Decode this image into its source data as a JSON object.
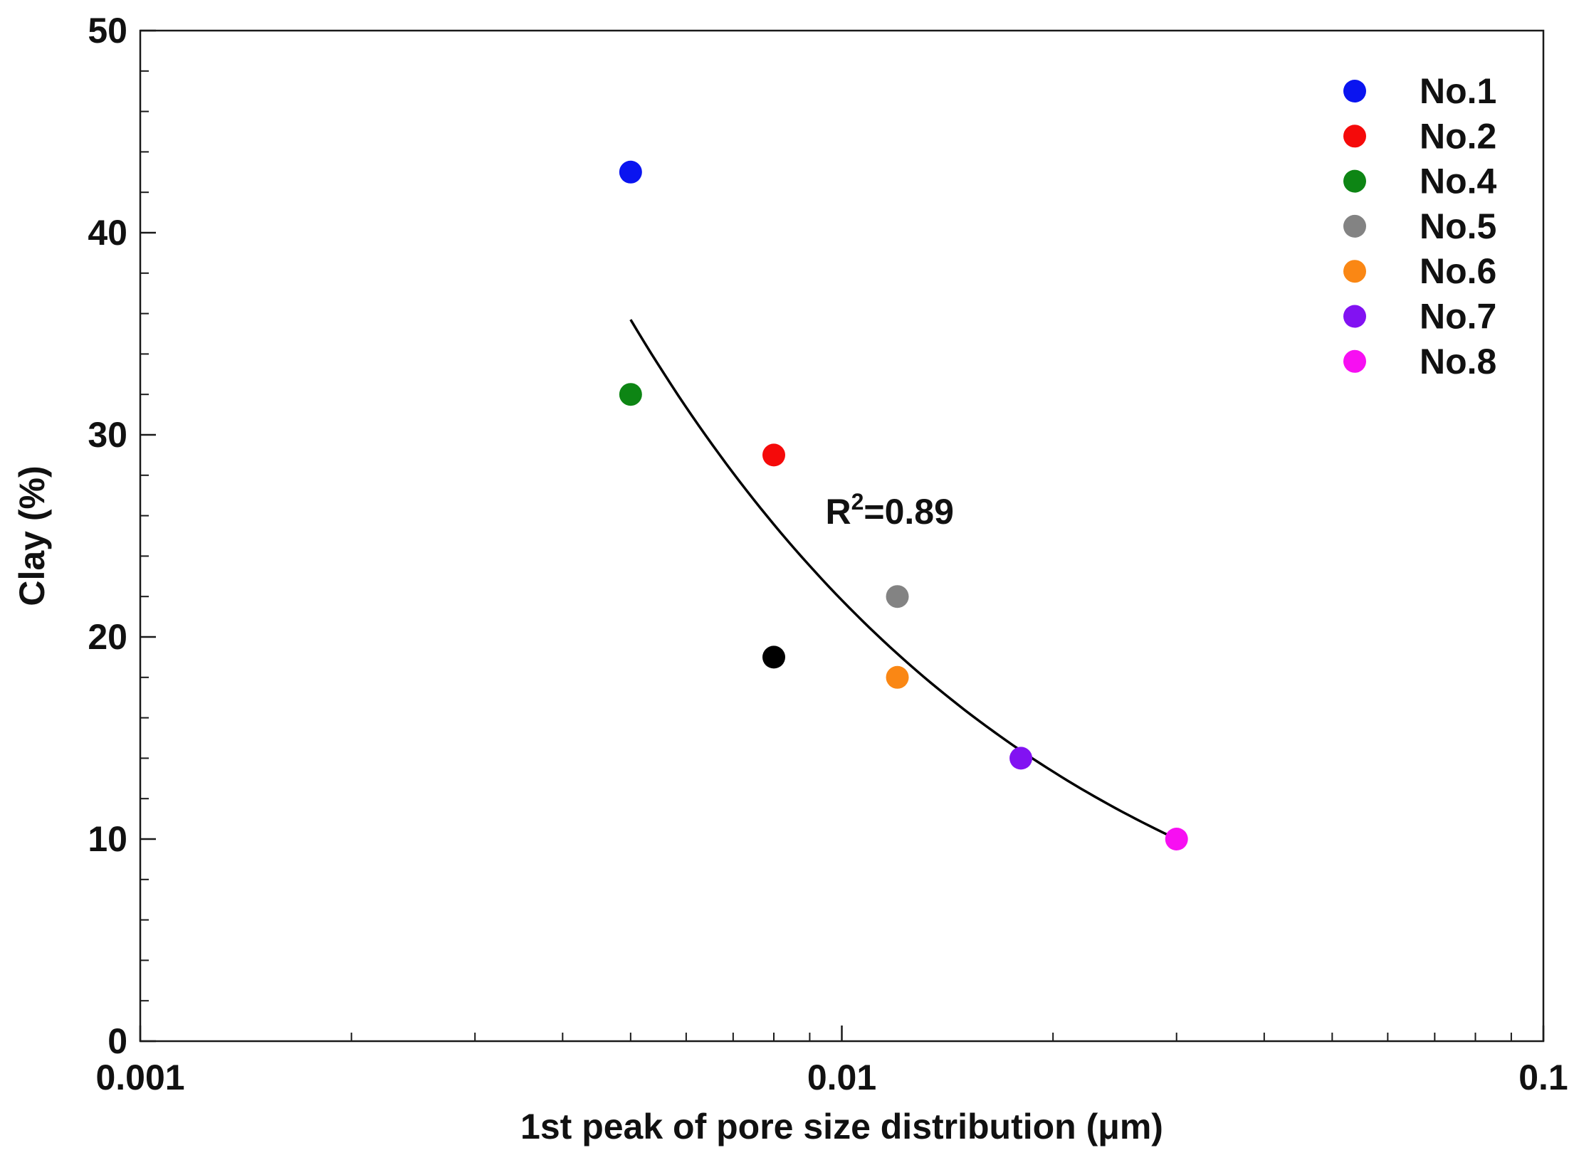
{
  "chart_data": {
    "type": "scatter",
    "title": "",
    "xlabel": "1st peak of pore size distribution (μm)",
    "ylabel": "Clay (%)",
    "xscale": "log",
    "xlim": [
      0.001,
      0.1
    ],
    "ylim": [
      0,
      50
    ],
    "x_ticks": [
      0.001,
      0.01,
      0.1
    ],
    "x_tick_labels": [
      "0.001",
      "0.01",
      "0.1"
    ],
    "y_ticks": [
      0,
      10,
      20,
      30,
      40,
      50
    ],
    "y_tick_labels": [
      "0",
      "10",
      "20",
      "30",
      "40",
      "50"
    ],
    "grid": false,
    "legend_position": "top-right",
    "series": [
      {
        "name": "No.1",
        "color": "#0a14f0",
        "x": [
          0.005
        ],
        "y": [
          43
        ]
      },
      {
        "name": "No.2",
        "color": "#f50a0a",
        "x": [
          0.008
        ],
        "y": [
          29
        ]
      },
      {
        "name": "No.4",
        "color": "#0d8514",
        "x": [
          0.005
        ],
        "y": [
          32
        ]
      },
      {
        "name": "No.5",
        "color": "#838383",
        "x": [
          0.012
        ],
        "y": [
          22
        ]
      },
      {
        "name": "No.6",
        "color": "#fa8714",
        "x": [
          0.012
        ],
        "y": [
          18
        ]
      },
      {
        "name": "No.7",
        "color": "#8212f2",
        "x": [
          0.018
        ],
        "y": [
          14
        ]
      },
      {
        "name": "No.8",
        "color": "#f70ff2",
        "x": [
          0.03
        ],
        "y": [
          10
        ]
      }
    ],
    "unlabeled_points": [
      {
        "color": "#000000",
        "x": 0.008,
        "y": 19
      }
    ],
    "fit_curve": {
      "type": "power",
      "x_range": [
        0.005,
        0.03
      ],
      "points": [
        {
          "x": 0.005,
          "y": 35.7
        },
        {
          "x": 0.03,
          "y": 10.0
        }
      ],
      "color": "#000000"
    },
    "annotations": [
      {
        "text_main": "R",
        "text_sup": "2",
        "text_rest": "=0.89",
        "x": 0.0117,
        "y": 25.6
      }
    ]
  }
}
